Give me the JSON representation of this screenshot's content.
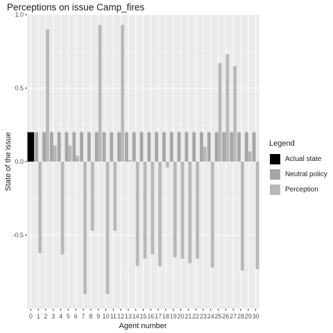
{
  "chart_data": {
    "type": "bar",
    "title": "Perceptions on issue Camp_fires",
    "xlabel": "Agent number",
    "ylabel": "State of the issue",
    "ylim": [
      -1.0,
      1.0
    ],
    "yticks": [
      -0.5,
      0.0,
      0.5,
      1.0
    ],
    "ytick_labels": [
      "-0.5",
      "0.0",
      "0.5",
      "1.0"
    ],
    "grid": true,
    "legend_position": "right",
    "legend_title": "Legend",
    "categories": [
      "0",
      "1",
      "2",
      "3",
      "4",
      "5",
      "6",
      "7",
      "8",
      "9",
      "10",
      "11",
      "12",
      "13",
      "14",
      "15",
      "16",
      "17",
      "18",
      "19",
      "20",
      "21",
      "22",
      "23",
      "24",
      "25",
      "26",
      "27",
      "28",
      "29",
      "30"
    ],
    "series": [
      {
        "name": "Actual state",
        "color": "#000000",
        "values": [
          0.2,
          null,
          null,
          null,
          null,
          null,
          null,
          null,
          null,
          null,
          null,
          null,
          null,
          null,
          null,
          null,
          null,
          null,
          null,
          null,
          null,
          null,
          null,
          null,
          null,
          null,
          null,
          null,
          null,
          null,
          null
        ]
      },
      {
        "name": "Neutral policy",
        "color": "#a6a6a6",
        "values": [
          null,
          0.2,
          0.2,
          0.2,
          0.2,
          0.2,
          0.2,
          0.2,
          0.2,
          0.2,
          0.2,
          0.2,
          0.2,
          0.2,
          0.2,
          0.2,
          0.2,
          0.2,
          0.2,
          0.2,
          0.2,
          0.2,
          0.2,
          0.2,
          0.2,
          0.2,
          0.2,
          0.2,
          0.2,
          0.2,
          0.2
        ]
      },
      {
        "name": "Perception",
        "color": "#b8b8b8",
        "values": [
          null,
          -0.62,
          0.9,
          0.11,
          -0.63,
          0.11,
          0.04,
          -0.9,
          -0.47,
          0.93,
          -0.9,
          -0.47,
          0.93,
          0.01,
          -0.71,
          -0.66,
          -0.63,
          -0.71,
          -0.04,
          -0.65,
          -0.66,
          -0.69,
          -0.66,
          0.1,
          -0.72,
          0.67,
          0.73,
          0.65,
          -0.74,
          0.07,
          -0.73
        ]
      }
    ]
  }
}
